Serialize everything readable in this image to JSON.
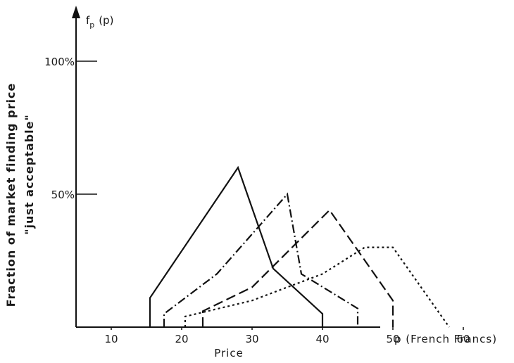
{
  "chart_data": {
    "type": "line",
    "title": "",
    "xlabel": "Price",
    "xunit_label": "p (French Francs)",
    "ylabel": "Fraction of market finding price",
    "ylabel2": "\"just acceptable\"",
    "y_axis_label": "f",
    "y_axis_sub": "p",
    "y_axis_arg": "(p)",
    "xlim": [
      5,
      63
    ],
    "ylim": [
      0,
      100
    ],
    "xticks": [
      10,
      20,
      30,
      40,
      50,
      60
    ],
    "xtick_labels": [
      "10",
      "20",
      "30",
      "40",
      "50",
      "60"
    ],
    "yticks": [
      50,
      100
    ],
    "ytick_labels": [
      "50%",
      "100%"
    ],
    "grid": false,
    "series": [
      {
        "style": "solid",
        "x": [
          15.5,
          15.5,
          28,
          33,
          40,
          40
        ],
        "y": [
          0,
          11,
          60,
          22,
          5,
          0
        ]
      },
      {
        "style": "dash-dot",
        "x": [
          17.5,
          17.5,
          25,
          35,
          37,
          45,
          45
        ],
        "y": [
          0,
          5,
          20,
          50,
          20,
          7,
          0
        ]
      },
      {
        "style": "dashed",
        "x": [
          23,
          23,
          30,
          41,
          50,
          50
        ],
        "y": [
          0,
          6,
          15,
          44,
          10,
          0
        ]
      },
      {
        "style": "dotted",
        "x": [
          20.5,
          20.5,
          30,
          40,
          46,
          50,
          58
        ],
        "y": [
          0,
          4,
          10,
          20,
          30,
          30,
          0
        ]
      }
    ]
  }
}
